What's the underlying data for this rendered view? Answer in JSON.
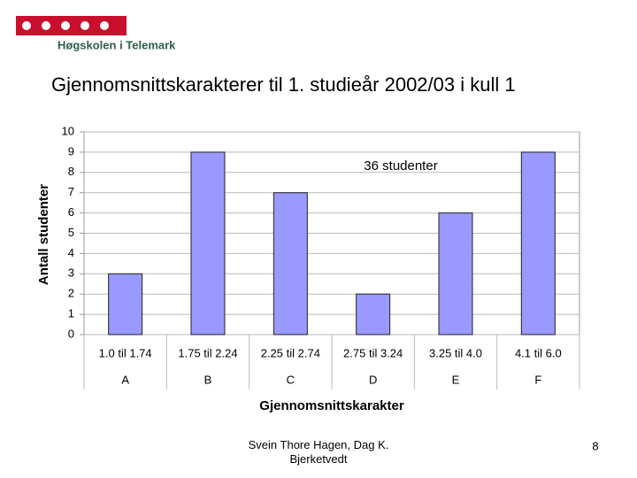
{
  "header": {
    "institution": "Høgskolen i Telemark"
  },
  "chart_data": {
    "type": "bar",
    "title": "Gjennomsnittskarakterer til 1. studieår 2002/03 i kull 1",
    "annotation": "36 studenter",
    "y_label": "Antall studenter",
    "x_label": "Gjennomsnittskarakter",
    "categories": [
      "1.0 til 1.74",
      "1.75 til 2.24",
      "2.25 til 2.74",
      "2.75 til 3.24",
      "3.25 til 4.0",
      "4.1 til 6.0"
    ],
    "category_groups": [
      "A",
      "B",
      "C",
      "D",
      "E",
      "F"
    ],
    "values": [
      3,
      9,
      7,
      2,
      6,
      9
    ],
    "color": "#9999ff",
    "ylim": [
      0,
      10
    ],
    "yticks": [
      0,
      1,
      2,
      3,
      4,
      5,
      6,
      7,
      8,
      9,
      10
    ],
    "grid": true
  },
  "footer": {
    "author": "Svein Thore Hagen, Dag K. Bjerketvedt",
    "page": "8"
  }
}
